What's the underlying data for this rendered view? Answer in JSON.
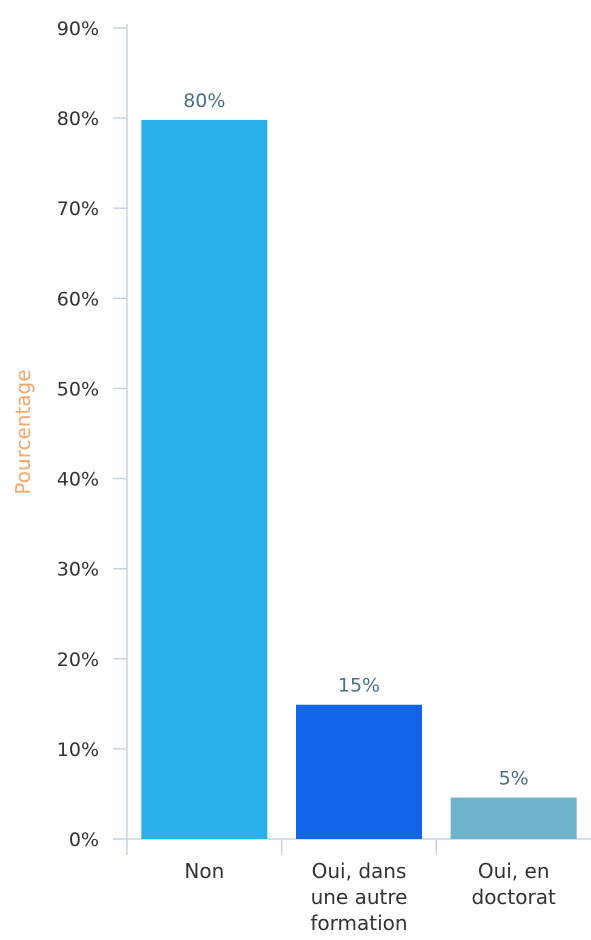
{
  "chart_data": {
    "type": "bar",
    "ylabel": "Pourcentage",
    "ylim": [
      0,
      90
    ],
    "yticks": [
      "0%",
      "10%",
      "20%",
      "30%",
      "40%",
      "50%",
      "60%",
      "70%",
      "80%",
      "90%"
    ],
    "categories": [
      [
        "Non"
      ],
      [
        "Oui, dans",
        "une autre",
        "formation"
      ],
      [
        "Oui, en",
        "doctorat"
      ]
    ],
    "values": [
      79.8,
      14.9,
      4.6
    ],
    "data_labels": [
      "80%",
      "15%",
      "5%"
    ],
    "colors": [
      "#2bb1ea",
      "#1264e9",
      "#6eb2cb"
    ],
    "grid": false,
    "legend": "none"
  }
}
